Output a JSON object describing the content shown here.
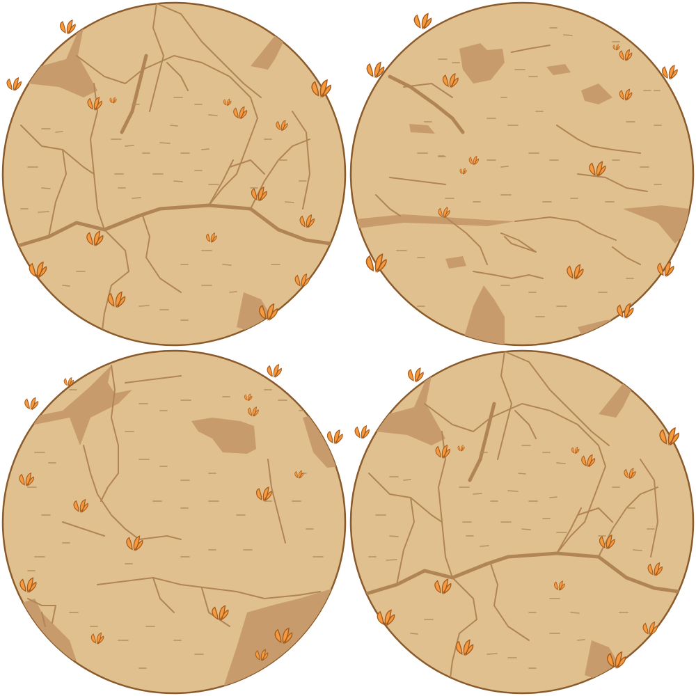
{
  "sheet": {
    "background": "#ffffff",
    "tiles": [
      {
        "name": "tile-top-left",
        "variant": "cracked-earth-a",
        "sprouts": 14
      },
      {
        "name": "tile-top-right",
        "variant": "cracked-earth-b",
        "sprouts": 12
      },
      {
        "name": "tile-bottom-left",
        "variant": "cracked-earth-c",
        "sprouts": 14
      },
      {
        "name": "tile-bottom-right",
        "variant": "cracked-earth-a",
        "sprouts": 14
      }
    ]
  },
  "colors": {
    "ground": "#e1c08f",
    "rim": "#8a5a2b",
    "dark_patch": "#c79b6b",
    "crack": "#b08454",
    "sprout": "#f59a3e",
    "sprout_outline": "#a65a1c"
  }
}
